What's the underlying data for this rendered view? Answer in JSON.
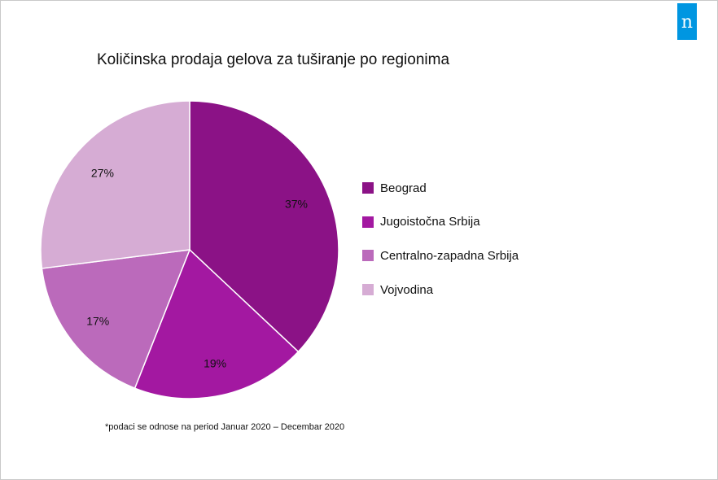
{
  "brand": {
    "logo_letter": "n",
    "color": "#0096e1"
  },
  "chart_data": {
    "type": "pie",
    "title": "Količinska prodaja gelova za tuširanje po regionima",
    "categories": [
      "Beograd",
      "Jugoistočna Srbija",
      "Centralno-zapadna Srbija",
      "Vojvodina"
    ],
    "values": [
      37,
      19,
      17,
      27
    ],
    "labels": [
      "37%",
      "19%",
      "17%",
      "27%"
    ],
    "colors": [
      "#8b1286",
      "#a318a1",
      "#bb6abb",
      "#d6acd4"
    ],
    "legend_position": "right"
  },
  "footnote": "*podaci se odnose na period Januar 2020 – Decembar 2020"
}
